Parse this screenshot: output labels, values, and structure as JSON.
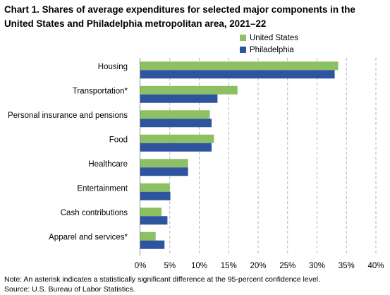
{
  "chart_data": {
    "type": "bar",
    "orientation": "horizontal",
    "title": "Chart 1. Shares of average expenditures for selected major components in the United States and Philadelphia metropolitan area, 2021–22",
    "categories": [
      "Housing",
      "Transportation*",
      "Personal insurance and pensions",
      "Food",
      "Healthcare",
      "Entertainment",
      "Cash contributions",
      "Apparel and services*"
    ],
    "series": [
      {
        "name": "United States",
        "color": "#8cc063",
        "values": [
          33.6,
          16.5,
          11.8,
          12.5,
          8.1,
          5.0,
          3.6,
          2.6
        ]
      },
      {
        "name": "Philadelphia",
        "color": "#2e54a0",
        "values": [
          33.0,
          13.1,
          12.1,
          12.1,
          8.1,
          5.1,
          4.6,
          4.1
        ]
      }
    ],
    "x_ticks": [
      "0%",
      "5%",
      "10%",
      "15%",
      "20%",
      "25%",
      "30%",
      "35%",
      "40%"
    ],
    "xlim": [
      0,
      40
    ],
    "grid": "vertical dashed",
    "legend_position": "top-right"
  },
  "notes": {
    "note": "Note: An asterisk indicates a statistically significant difference at the 95-percent confidence level.",
    "source": "Source: U.S. Bureau of Labor Statistics."
  }
}
